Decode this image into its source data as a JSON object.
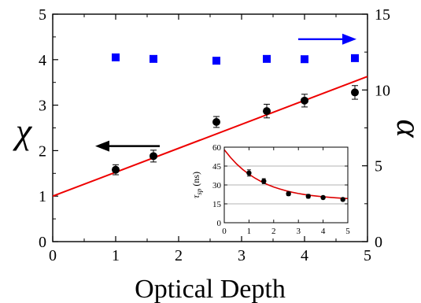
{
  "chart_data": [
    {
      "type": "scatter",
      "xlabel": "Optical Depth",
      "ylabel": "χ",
      "y2label": "α",
      "xlim": [
        0,
        5
      ],
      "ylim": [
        0,
        5
      ],
      "y2lim": [
        0,
        15
      ],
      "xticks": [
        "0",
        "1",
        "2",
        "3",
        "4",
        "5"
      ],
      "yticks": [
        "0",
        "1",
        "2",
        "3",
        "4",
        "5"
      ],
      "y2ticks": [
        "0",
        "5",
        "10",
        "15"
      ],
      "grid": false,
      "series": [
        {
          "axis": "left",
          "marker": "circle",
          "color": "#000000",
          "x": [
            1.0,
            1.6,
            2.6,
            3.4,
            4.0,
            4.8
          ],
          "y": [
            1.58,
            1.88,
            2.63,
            2.87,
            3.1,
            3.28
          ],
          "yerr": [
            0.11,
            0.13,
            0.12,
            0.15,
            0.14,
            0.15
          ]
        },
        {
          "axis": "left",
          "type": "line",
          "color": "#ee0000",
          "x": [
            0,
            5
          ],
          "y": [
            1.0,
            3.63
          ]
        },
        {
          "axis": "right",
          "marker": "square",
          "color": "#0000ff",
          "x": [
            1.0,
            1.6,
            2.6,
            3.4,
            4.0,
            4.8
          ],
          "y": [
            12.15,
            12.05,
            11.93,
            12.05,
            12.03,
            12.1
          ]
        }
      ],
      "annotations": [
        {
          "type": "arrow",
          "direction": "left",
          "color": "#000000",
          "series": "χ"
        },
        {
          "type": "arrow",
          "direction": "right",
          "color": "#0000ff",
          "series": "α"
        }
      ]
    },
    {
      "type": "scatter",
      "role": "inset",
      "xlabel": "",
      "ylabel": "τsp (ns)",
      "ylabel_main": "τ",
      "ylabel_sub": "sp",
      "ylabel_unit": " (ns)",
      "xlim": [
        0,
        5
      ],
      "ylim": [
        0,
        60
      ],
      "xticks": [
        "0",
        "1",
        "2",
        "3",
        "4",
        "5"
      ],
      "yticks": [
        "0",
        "15",
        "30",
        "45",
        "60"
      ],
      "grid": true,
      "series": [
        {
          "marker": "circle",
          "color": "#000000",
          "x": [
            1.0,
            1.6,
            2.6,
            3.4,
            4.0,
            4.8
          ],
          "y": [
            39.5,
            33.0,
            23.0,
            21.0,
            20.0,
            18.5
          ],
          "yerr": [
            2.5,
            2.0,
            1.5,
            1.5,
            1.2,
            1.2
          ]
        },
        {
          "type": "line",
          "color": "#dd0000",
          "fit": "exponential",
          "x": [
            0,
            0.25,
            0.5,
            0.75,
            1,
            1.25,
            1.5,
            1.75,
            2,
            2.25,
            2.5,
            2.75,
            3,
            3.25,
            3.5,
            3.75,
            4,
            4.25,
            4.5,
            4.75,
            5
          ],
          "y": [
            58,
            51.9,
            46.6,
            42.2,
            38.5,
            35.3,
            32.6,
            30.3,
            28.4,
            26.8,
            25.4,
            24.2,
            23.2,
            22.4,
            21.7,
            21.1,
            20.6,
            20.2,
            19.8,
            19.5,
            19.2
          ]
        }
      ]
    }
  ]
}
